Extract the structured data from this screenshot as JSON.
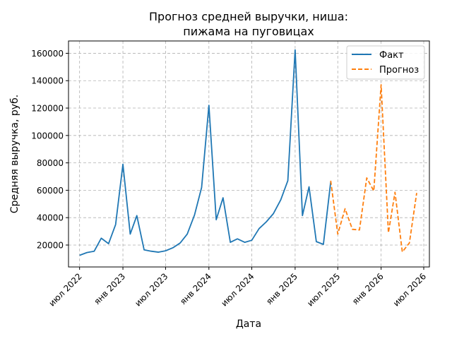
{
  "chart_data": {
    "type": "line",
    "title_line1": "Прогноз средней выручки, ниша:",
    "title_line2": "пижама на пуговицах",
    "xlabel": "Дата",
    "ylabel": "Средняя выручка, руб.",
    "ylim": [
      4000,
      169000
    ],
    "xlim": [
      "2022-05-15",
      "2026-07-25"
    ],
    "grid": true,
    "legend_position": "top-right",
    "x_ticks": [
      {
        "date": "2022-07-01",
        "label": "июл 2022"
      },
      {
        "date": "2023-01-01",
        "label": "янв 2023"
      },
      {
        "date": "2023-07-01",
        "label": "июл 2023"
      },
      {
        "date": "2024-01-01",
        "label": "янв 2024"
      },
      {
        "date": "2024-07-01",
        "label": "июл 2024"
      },
      {
        "date": "2025-01-01",
        "label": "янв 2025"
      },
      {
        "date": "2025-07-01",
        "label": "июл 2025"
      },
      {
        "date": "2026-01-01",
        "label": "янв 2026"
      },
      {
        "date": "2026-07-01",
        "label": "июл 2026"
      }
    ],
    "y_ticks": [
      {
        "value": 20000,
        "label": "20000"
      },
      {
        "value": 40000,
        "label": "40000"
      },
      {
        "value": 60000,
        "label": "60000"
      },
      {
        "value": 80000,
        "label": "80000"
      },
      {
        "value": 100000,
        "label": "100000"
      },
      {
        "value": 120000,
        "label": "120000"
      },
      {
        "value": 140000,
        "label": "140000"
      },
      {
        "value": 160000,
        "label": "160000"
      }
    ],
    "series": [
      {
        "name": "Факт",
        "color": "#1f77b4",
        "dash": "solid",
        "points": [
          {
            "x": "2022-07-01",
            "y": 12500
          },
          {
            "x": "2022-08-01",
            "y": 14500
          },
          {
            "x": "2022-09-01",
            "y": 15500
          },
          {
            "x": "2022-10-01",
            "y": 25000
          },
          {
            "x": "2022-11-01",
            "y": 21000
          },
          {
            "x": "2022-12-01",
            "y": 35000
          },
          {
            "x": "2023-01-01",
            "y": 79000
          },
          {
            "x": "2023-02-01",
            "y": 28000
          },
          {
            "x": "2023-03-01",
            "y": 41500
          },
          {
            "x": "2023-04-01",
            "y": 16500
          },
          {
            "x": "2023-05-01",
            "y": 15500
          },
          {
            "x": "2023-06-01",
            "y": 14800
          },
          {
            "x": "2023-07-01",
            "y": 15800
          },
          {
            "x": "2023-08-01",
            "y": 18000
          },
          {
            "x": "2023-09-01",
            "y": 21500
          },
          {
            "x": "2023-10-01",
            "y": 28000
          },
          {
            "x": "2023-11-01",
            "y": 42000
          },
          {
            "x": "2023-12-01",
            "y": 62000
          },
          {
            "x": "2024-01-01",
            "y": 122000
          },
          {
            "x": "2024-02-01",
            "y": 38500
          },
          {
            "x": "2024-03-01",
            "y": 54500
          },
          {
            "x": "2024-04-01",
            "y": 22000
          },
          {
            "x": "2024-05-01",
            "y": 24500
          },
          {
            "x": "2024-06-01",
            "y": 22000
          },
          {
            "x": "2024-07-01",
            "y": 23500
          },
          {
            "x": "2024-08-01",
            "y": 32000
          },
          {
            "x": "2024-09-01",
            "y": 37000
          },
          {
            "x": "2024-10-01",
            "y": 43000
          },
          {
            "x": "2024-11-01",
            "y": 53000
          },
          {
            "x": "2024-12-01",
            "y": 67000
          },
          {
            "x": "2025-01-01",
            "y": 162500
          },
          {
            "x": "2025-02-01",
            "y": 41500
          },
          {
            "x": "2025-03-01",
            "y": 62500
          },
          {
            "x": "2025-04-01",
            "y": 22500
          },
          {
            "x": "2025-05-01",
            "y": 20500
          },
          {
            "x": "2025-06-01",
            "y": 66000
          }
        ]
      },
      {
        "name": "Прогноз",
        "color": "#ff7f0e",
        "dash": "dashed",
        "points": [
          {
            "x": "2025-06-01",
            "y": 67000
          },
          {
            "x": "2025-07-01",
            "y": 28000
          },
          {
            "x": "2025-08-01",
            "y": 46500
          },
          {
            "x": "2025-09-01",
            "y": 31500
          },
          {
            "x": "2025-10-01",
            "y": 31000
          },
          {
            "x": "2025-11-01",
            "y": 69000
          },
          {
            "x": "2025-12-01",
            "y": 59500
          },
          {
            "x": "2026-01-01",
            "y": 137000
          },
          {
            "x": "2026-02-01",
            "y": 29000
          },
          {
            "x": "2026-03-01",
            "y": 58500
          },
          {
            "x": "2026-04-01",
            "y": 15000
          },
          {
            "x": "2026-05-01",
            "y": 21500
          },
          {
            "x": "2026-06-01",
            "y": 58000
          }
        ]
      }
    ]
  }
}
